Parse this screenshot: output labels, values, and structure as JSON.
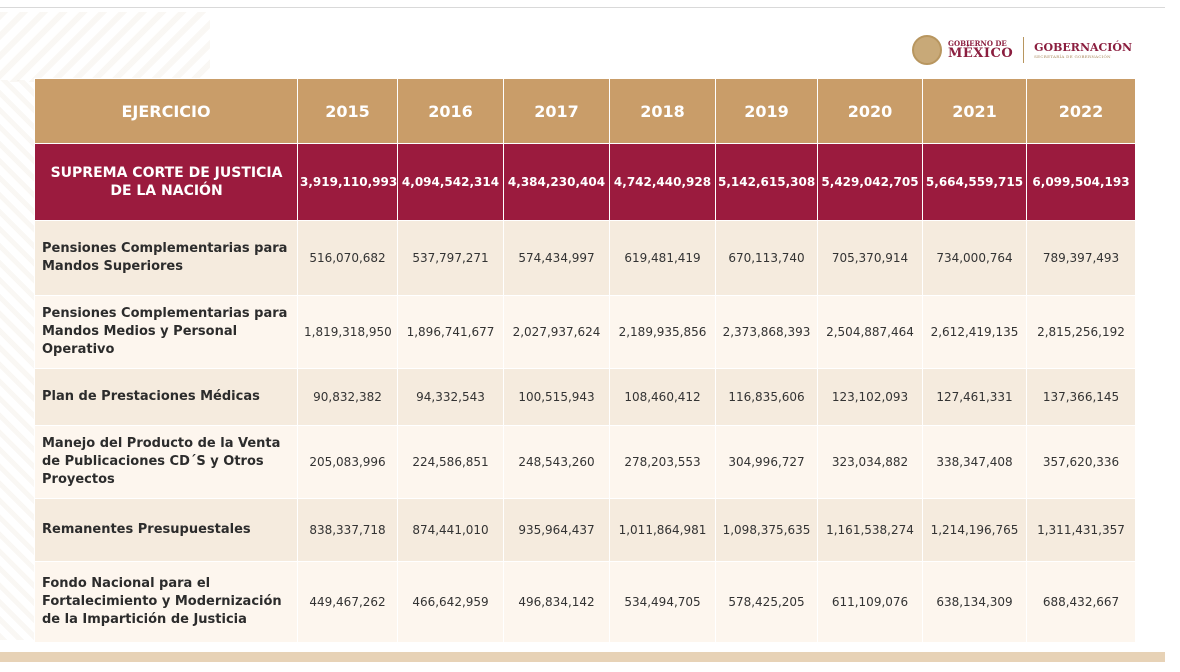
{
  "logo": {
    "gobierno_line": "GOBIERNO DE",
    "mexico_line": "MÉXICO",
    "ministry": "GOBERNACIÓN",
    "ministry_sub": "SECRETARÍA DE GOBERNACIÓN"
  },
  "colors": {
    "header": "#c99d69",
    "highlight": "#9b1b3e",
    "row_light": "#f5ebde",
    "row_alt": "#fdf6ee",
    "bottom_bar": "#e7d2b6"
  },
  "table": {
    "header": [
      "EJERCICIO",
      "2015",
      "2016",
      "2017",
      "2018",
      "2019",
      "2020",
      "2021",
      "2022"
    ],
    "highlight_row": {
      "label": "SUPREMA CORTE DE JUSTICIA DE LA NACIÓN",
      "values": [
        "3,919,110,993",
        "4,094,542,314",
        "4,384,230,404",
        "4,742,440,928",
        "5,142,615,308",
        "5,429,042,705",
        "5,664,559,715",
        "6,099,504,193"
      ]
    },
    "rows": [
      {
        "label": "Pensiones Complementarias para Mandos Superiores",
        "values": [
          "516,070,682",
          "537,797,271",
          "574,434,997",
          "619,481,419",
          "670,113,740",
          "705,370,914",
          "734,000,764",
          "789,397,493"
        ]
      },
      {
        "label": "Pensiones Complementarias para Mandos Medios y Personal Operativo",
        "values": [
          "1,819,318,950",
          "1,896,741,677",
          "2,027,937,624",
          "2,189,935,856",
          "2,373,868,393",
          "2,504,887,464",
          "2,612,419,135",
          "2,815,256,192"
        ]
      },
      {
        "label": "Plan de Prestaciones Médicas",
        "values": [
          "90,832,382",
          "94,332,543",
          "100,515,943",
          "108,460,412",
          "116,835,606",
          "123,102,093",
          "127,461,331",
          "137,366,145"
        ]
      },
      {
        "label": "Manejo del Producto de la Venta de Publicaciones CD´S y Otros Proyectos",
        "values": [
          "205,083,996",
          "224,586,851",
          "248,543,260",
          "278,203,553",
          "304,996,727",
          "323,034,882",
          "338,347,408",
          "357,620,336"
        ]
      },
      {
        "label": "Remanentes Presupuestales",
        "values": [
          "838,337,718",
          "874,441,010",
          "935,964,437",
          "1,011,864,981",
          "1,098,375,635",
          "1,161,538,274",
          "1,214,196,765",
          "1,311,431,357"
        ]
      },
      {
        "label": "Fondo Nacional para el Fortalecimiento y Modernización de la Impartición de Justicia",
        "values": [
          "449,467,262",
          "466,642,959",
          "496,834,142",
          "534,494,705",
          "578,425,205",
          "611,109,076",
          "638,134,309",
          "688,432,667"
        ]
      }
    ]
  }
}
